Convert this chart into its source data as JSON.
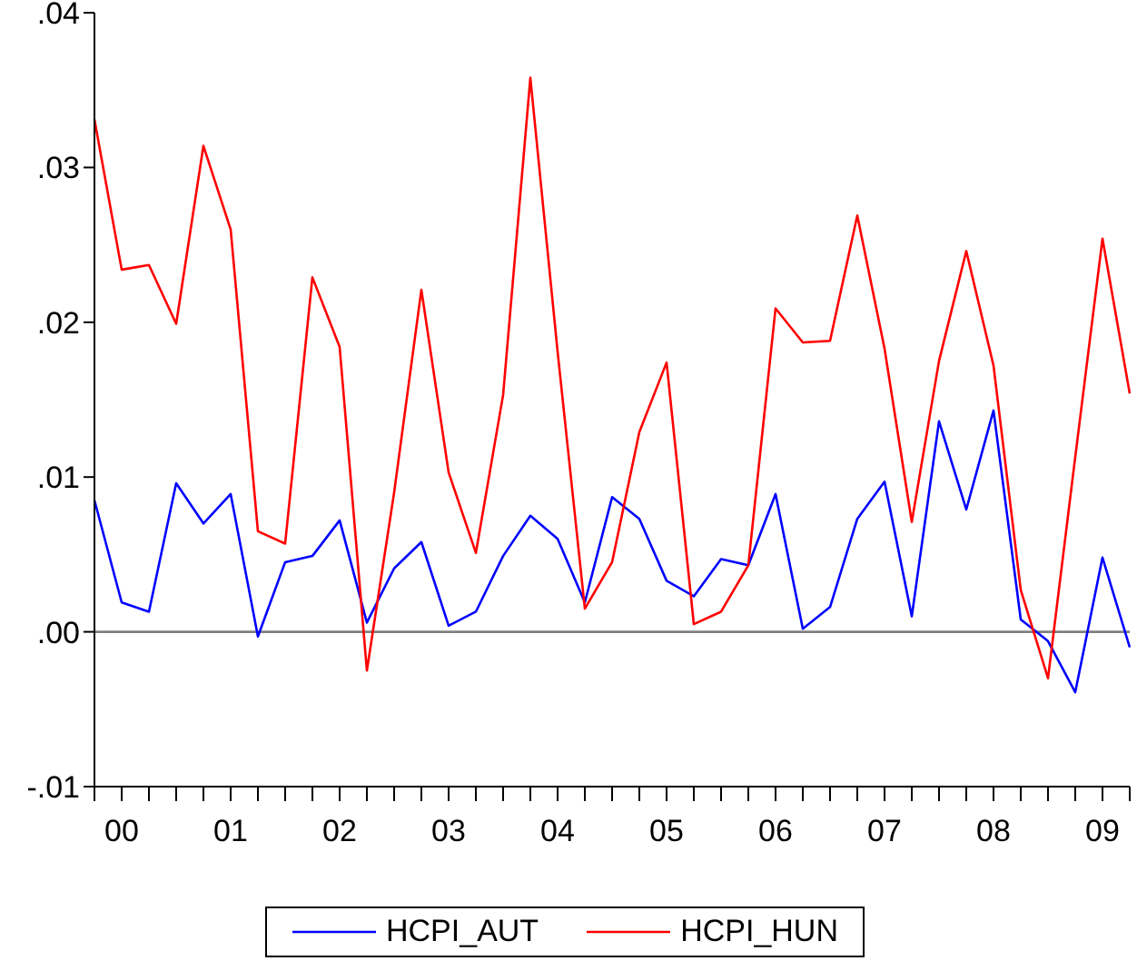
{
  "chart_data": {
    "type": "line",
    "categories": [
      null,
      "00",
      null,
      null,
      null,
      "01",
      null,
      null,
      null,
      "02",
      null,
      null,
      null,
      "03",
      null,
      null,
      null,
      "04",
      null,
      null,
      null,
      "05",
      null,
      null,
      null,
      "06",
      null,
      null,
      null,
      "07",
      null,
      null,
      null,
      "08",
      null,
      null,
      null,
      "09",
      null
    ],
    "series": [
      {
        "name": "HCPI_AUT",
        "color": "#0000ff",
        "values": [
          0.0085,
          0.0019,
          0.0013,
          0.0096,
          0.007,
          0.0089,
          -0.0003,
          0.0045,
          0.0049,
          0.0072,
          0.0006,
          0.0041,
          0.0058,
          0.0004,
          0.0013,
          0.0049,
          0.0075,
          0.006,
          0.0019,
          0.0087,
          0.0073,
          0.0033,
          0.0023,
          0.0047,
          0.0043,
          0.0089,
          0.0002,
          0.0016,
          0.0073,
          0.0097,
          0.001,
          0.0136,
          0.0079,
          0.0143,
          0.0008,
          -0.0006,
          -0.0039,
          0.0048,
          -0.001
        ]
      },
      {
        "name": "HCPI_HUN",
        "color": "#ff0000",
        "values": [
          0.0331,
          0.0234,
          0.0237,
          0.0199,
          0.0314,
          0.026,
          0.0065,
          0.0057,
          0.0229,
          0.0184,
          -0.0025,
          0.009,
          0.0221,
          0.0103,
          0.0051,
          0.0153,
          0.0358,
          0.0181,
          0.0015,
          0.0045,
          0.0129,
          0.0174,
          0.0005,
          0.0013,
          0.0043,
          0.0209,
          0.0187,
          0.0188,
          0.0269,
          0.0183,
          0.0071,
          0.0175,
          0.0246,
          0.0172,
          0.0027,
          -0.003,
          0.0113,
          0.0254,
          0.0154
        ]
      }
    ],
    "ylim": [
      -0.01,
      0.04
    ],
    "yticks": [
      {
        "value": -0.01,
        "label": "-.01"
      },
      {
        "value": 0,
        "label": ".00"
      },
      {
        "value": 0.01,
        "label": ".01"
      },
      {
        "value": 0.02,
        "label": ".02"
      },
      {
        "value": 0.03,
        "label": ".03"
      },
      {
        "value": 0.04,
        "label": ".04"
      }
    ],
    "ref_lines": [
      {
        "axis": "y",
        "value": 0,
        "label": null,
        "color": "#808080"
      }
    ],
    "grid": false,
    "legend": "bottom",
    "marker": "none",
    "line_style": "solid"
  }
}
